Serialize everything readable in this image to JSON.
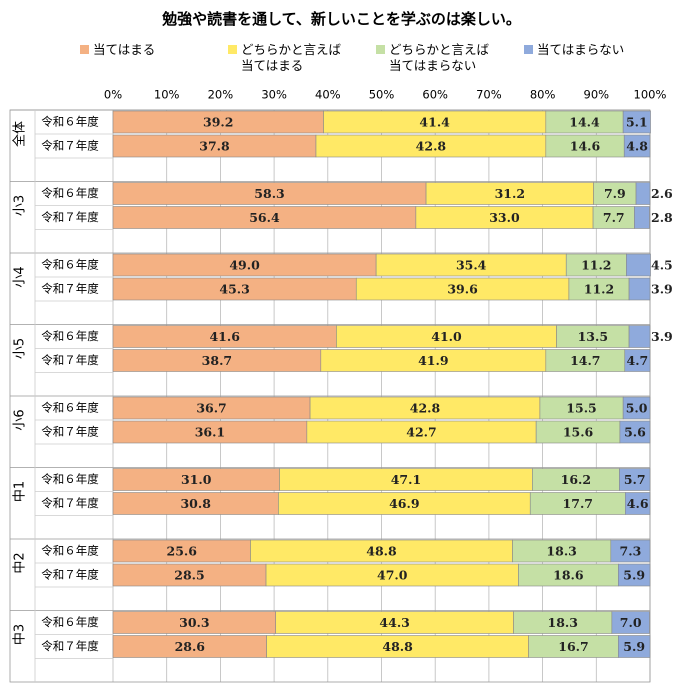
{
  "chart_data": {
    "type": "bar",
    "orientation": "horizontal",
    "stacked": true,
    "title": "勉強や読書を通して、新しいことを学ぶのは楽しい。",
    "groups": [
      "全体",
      "小3",
      "小4",
      "小5",
      "小6",
      "中1",
      "中2",
      "中3"
    ],
    "categories": [
      "令和６年度",
      "令和７年度",
      "令和６年度",
      "令和７年度",
      "令和６年度",
      "令和７年度",
      "令和６年度",
      "令和７年度",
      "令和６年度",
      "令和７年度",
      "令和６年度",
      "令和７年度",
      "令和６年度",
      "令和７年度",
      "令和６年度",
      "令和７年度"
    ],
    "series": [
      {
        "name": "当てはまる",
        "color": "#f4b183",
        "values": [
          39.2,
          37.8,
          58.3,
          56.4,
          49.0,
          45.3,
          41.6,
          38.7,
          36.7,
          36.1,
          31.0,
          30.8,
          25.6,
          28.5,
          30.3,
          28.6
        ],
        "value_labels": [
          "39.2",
          "37.8",
          "58.3",
          "56.4",
          "49.0",
          "45.3",
          "41.6",
          "38.7",
          "36.7",
          "36.1",
          "31.0",
          "30.8",
          "25.6",
          "28.5",
          "30.3",
          "28.6"
        ]
      },
      {
        "name": "どちらかと言えば当てはまる",
        "color": "#ffe966",
        "values": [
          41.4,
          42.8,
          31.2,
          33.0,
          35.4,
          39.6,
          41.0,
          41.9,
          42.8,
          42.7,
          47.1,
          46.9,
          48.8,
          47.0,
          44.3,
          48.8
        ],
        "value_labels": [
          "41.4",
          "42.8",
          "31.2",
          "33.0",
          "35.4",
          "39.6",
          "41.0",
          "41.9",
          "42.8",
          "42.7",
          "47.1",
          "46.9",
          "48.8",
          "47.0",
          "44.3",
          "48.8"
        ]
      },
      {
        "name": "どちらかと言えば当てはまらない",
        "color": "#c5e0a5",
        "values": [
          14.4,
          14.6,
          7.9,
          7.7,
          11.2,
          11.2,
          13.5,
          14.7,
          15.5,
          15.6,
          16.2,
          17.7,
          18.3,
          18.6,
          18.3,
          16.7
        ],
        "value_labels": [
          "14.4",
          "14.6",
          "7.9",
          "7.7",
          "11.2",
          "11.2",
          "13.5",
          "14.7",
          "15.5",
          "15.6",
          "16.2",
          "17.7",
          "18.3",
          "18.6",
          "18.3",
          "16.7"
        ]
      },
      {
        "name": "当てはまらない",
        "color": "#8faadc",
        "values": [
          5.1,
          4.8,
          2.6,
          2.8,
          4.5,
          3.9,
          3.9,
          4.7,
          5.0,
          5.6,
          5.7,
          4.6,
          7.3,
          5.9,
          7.0,
          5.9
        ],
        "value_labels": [
          "5.1",
          "4.8",
          "2.6",
          "2.8",
          "4.5",
          "3.9",
          "3.9",
          "4.7",
          "5.0",
          "5.6",
          "5.7",
          "4.6",
          "7.3",
          "5.9",
          "7.0",
          "5.9"
        ]
      }
    ],
    "xlim": [
      0,
      100
    ],
    "xticks": [
      {
        "value": 0,
        "label": "0%"
      },
      {
        "value": 10,
        "label": "10%"
      },
      {
        "value": 20,
        "label": "20%"
      },
      {
        "value": 30,
        "label": "30%"
      },
      {
        "value": 40,
        "label": "40%"
      },
      {
        "value": 50,
        "label": "50%"
      },
      {
        "value": 60,
        "label": "60%"
      },
      {
        "value": 70,
        "label": "70%"
      },
      {
        "value": 80,
        "label": "80%"
      },
      {
        "value": 90,
        "label": "90%"
      },
      {
        "value": 100,
        "label": "100%"
      }
    ],
    "grid": true,
    "legend": "top"
  }
}
